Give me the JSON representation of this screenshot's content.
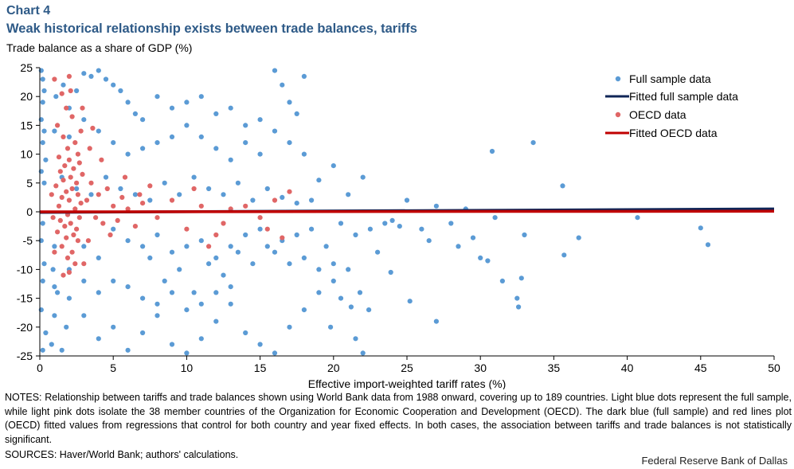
{
  "header": {
    "chart_label": "Chart 4",
    "title": "Weak historical relationship exists between trade balances, tariffs"
  },
  "footer": {
    "notes": "NOTES: Relationship between tariffs and trade balances shown using World Bank data from 1988 onward, covering up to 189 countries. Light blue dots represent the full sample, while light pink dots isolate the 38 member countries of the Organization for Economic Cooperation and Development (OECD). The dark blue (full sample) and red lines plot (OECD) fitted values from regressions that control for both country and year fixed effects. In both cases, the association between tariffs and trade balances is not statistically significant.",
    "sources": "SOURCES: Haver/World Bank; authors' calculations.",
    "credit": "Federal Reserve Bank of Dallas"
  },
  "colors": {
    "full_sample": "#5b9bd5",
    "oecd": "#e06666",
    "fitted_full": "#0f2557",
    "fitted_oecd": "#c00000"
  },
  "chart_data": {
    "type": "scatter",
    "title": "Weak historical relationship exists between trade balances, tariffs",
    "xlabel": "Effective import-weighted tariff rates (%)",
    "ylabel": "Trade balance as a share of GDP (%)",
    "xlim": [
      0,
      50
    ],
    "ylim": [
      -25,
      25
    ],
    "xticks": [
      0,
      5,
      10,
      15,
      20,
      25,
      30,
      35,
      40,
      45,
      50
    ],
    "yticks": [
      -25,
      -20,
      -15,
      -10,
      -5,
      0,
      5,
      10,
      15,
      20,
      25
    ],
    "grid": false,
    "legend_position": "top-right",
    "series": [
      {
        "name": "Full sample data",
        "kind": "points",
        "color": "#5b9bd5",
        "points": [
          [
            0.1,
            24.5
          ],
          [
            0.2,
            23.0
          ],
          [
            0.3,
            21.0
          ],
          [
            0.2,
            19.0
          ],
          [
            0.1,
            16.0
          ],
          [
            0.3,
            14.0
          ],
          [
            0.2,
            12.0
          ],
          [
            0.4,
            9.0
          ],
          [
            0.1,
            7.0
          ],
          [
            0.3,
            5.0
          ],
          [
            0.2,
            -2.0
          ],
          [
            0.1,
            -5.0
          ],
          [
            0.3,
            -9.0
          ],
          [
            0.2,
            -12.0
          ],
          [
            0.1,
            -17.0
          ],
          [
            0.4,
            -21.0
          ],
          [
            0.2,
            -24.0
          ],
          [
            0.8,
            -23.0
          ],
          [
            1.0,
            -18.0
          ],
          [
            1.2,
            -14.0
          ],
          [
            0.9,
            -10.0
          ],
          [
            1.5,
            -24.0
          ],
          [
            1.8,
            -20.0
          ],
          [
            1.1,
            20.0
          ],
          [
            1.6,
            22.0
          ],
          [
            2.0,
            18.0
          ],
          [
            2.5,
            21.0
          ],
          [
            3.0,
            24.0
          ],
          [
            3.5,
            23.5
          ],
          [
            4.0,
            24.5
          ],
          [
            4.5,
            23.0
          ],
          [
            5.0,
            22.0
          ],
          [
            5.5,
            21.0
          ],
          [
            6.0,
            19.0
          ],
          [
            6.5,
            17.0
          ],
          [
            7.0,
            16.0
          ],
          [
            8.0,
            20.0
          ],
          [
            9.0,
            18.0
          ],
          [
            10.0,
            19.0
          ],
          [
            11.0,
            20.0
          ],
          [
            12.0,
            17.0
          ],
          [
            13.0,
            18.0
          ],
          [
            14.0,
            15.0
          ],
          [
            15.0,
            16.0
          ],
          [
            16.0,
            24.5
          ],
          [
            16.5,
            22.0
          ],
          [
            17.0,
            19.0
          ],
          [
            17.5,
            17.0
          ],
          [
            18.0,
            23.5
          ],
          [
            3.0,
            -18.0
          ],
          [
            4.0,
            -22.0
          ],
          [
            5.0,
            -20.0
          ],
          [
            6.0,
            -24.0
          ],
          [
            7.0,
            -21.0
          ],
          [
            8.0,
            -18.0
          ],
          [
            9.0,
            -23.0
          ],
          [
            10.0,
            -24.5
          ],
          [
            11.0,
            -22.0
          ],
          [
            12.0,
            -19.0
          ],
          [
            13.0,
            -16.0
          ],
          [
            14.0,
            -21.0
          ],
          [
            15.0,
            -23.0
          ],
          [
            16.0,
            -24.5
          ],
          [
            17.0,
            -20.0
          ],
          [
            18.0,
            -17.0
          ],
          [
            19.0,
            -14.0
          ],
          [
            20.0,
            -12.0
          ],
          [
            21.0,
            -10.0
          ],
          [
            21.5,
            -22.0
          ],
          [
            22.0,
            -24.5
          ],
          [
            20.5,
            -15.0
          ],
          [
            7.5,
            -8.0
          ],
          [
            8.5,
            -12.0
          ],
          [
            9.5,
            -10.0
          ],
          [
            10.5,
            -14.0
          ],
          [
            11.5,
            -9.0
          ],
          [
            12.5,
            -11.0
          ],
          [
            13.5,
            -7.0
          ],
          [
            14.5,
            -9.0
          ],
          [
            15.5,
            -6.0
          ],
          [
            16.5,
            -5.0
          ],
          [
            17.5,
            -4.0
          ],
          [
            18.5,
            -3.0
          ],
          [
            19.5,
            -6.0
          ],
          [
            20.5,
            -2.0
          ],
          [
            21.5,
            -4.0
          ],
          [
            22.5,
            -3.0
          ],
          [
            23.5,
            -2.0
          ],
          [
            24.0,
            -1.5
          ],
          [
            24.5,
            -2.5
          ],
          [
            25.0,
            2.0
          ],
          [
            26.0,
            -3.0
          ],
          [
            27.0,
            1.0
          ],
          [
            28.0,
            -2.0
          ],
          [
            29.0,
            0.5
          ],
          [
            30.0,
            -8.0
          ],
          [
            30.5,
            -8.5
          ],
          [
            31.0,
            -1.0
          ],
          [
            31.5,
            -12.0
          ],
          [
            32.5,
            -15.0
          ],
          [
            32.6,
            -16.5
          ],
          [
            32.8,
            -11.5
          ],
          [
            33.0,
            -4.0
          ],
          [
            30.8,
            10.5
          ],
          [
            33.6,
            12.0
          ],
          [
            35.6,
            4.5
          ],
          [
            35.7,
            -7.5
          ],
          [
            36.7,
            -4.5
          ],
          [
            40.7,
            -1.0
          ],
          [
            45.0,
            -2.8
          ],
          [
            45.5,
            -5.7
          ],
          [
            23.9,
            -10.5
          ],
          [
            25.2,
            -15.5
          ],
          [
            27.0,
            -19.0
          ],
          [
            22.4,
            -17.0
          ],
          [
            21.2,
            -16.5
          ],
          [
            19.8,
            -20.0
          ],
          [
            21.8,
            -14.0
          ],
          [
            23.0,
            -7.0
          ],
          [
            28.5,
            -6.0
          ],
          [
            29.5,
            -4.5
          ],
          [
            26.5,
            -5.0
          ],
          [
            19.0,
            5.5
          ],
          [
            20.0,
            8.0
          ],
          [
            21.0,
            3.0
          ],
          [
            22.0,
            6.0
          ],
          [
            18.0,
            10.0
          ],
          [
            17.0,
            12.0
          ],
          [
            16.0,
            14.0
          ],
          [
            15.0,
            10.0
          ],
          [
            14.0,
            12.0
          ],
          [
            13.0,
            9.0
          ],
          [
            12.0,
            11.0
          ],
          [
            11.0,
            13.0
          ],
          [
            10.0,
            15.0
          ],
          [
            9.0,
            13.0
          ],
          [
            8.0,
            12.0
          ],
          [
            7.0,
            11.0
          ],
          [
            6.0,
            10.0
          ],
          [
            5.0,
            12.0
          ],
          [
            4.0,
            14.0
          ],
          [
            3.0,
            16.0
          ],
          [
            2.0,
            13.0
          ],
          [
            1.0,
            14.0
          ],
          [
            1.5,
            6.0
          ],
          [
            2.5,
            4.0
          ],
          [
            3.5,
            3.0
          ],
          [
            4.5,
            6.0
          ],
          [
            5.5,
            4.0
          ],
          [
            6.5,
            3.0
          ],
          [
            7.5,
            2.0
          ],
          [
            8.5,
            5.0
          ],
          [
            9.5,
            3.0
          ],
          [
            10.5,
            6.0
          ],
          [
            11.5,
            4.0
          ],
          [
            12.5,
            3.0
          ],
          [
            13.5,
            5.0
          ],
          [
            14.5,
            2.0
          ],
          [
            15.5,
            4.0
          ],
          [
            16.5,
            2.5
          ],
          [
            17.5,
            1.5
          ],
          [
            18.5,
            2.0
          ],
          [
            5.0,
            -3.0
          ],
          [
            6.0,
            -5.0
          ],
          [
            7.0,
            -6.0
          ],
          [
            8.0,
            -4.0
          ],
          [
            9.0,
            -7.0
          ],
          [
            10.0,
            -6.0
          ],
          [
            11.0,
            -5.0
          ],
          [
            12.0,
            -8.0
          ],
          [
            13.0,
            -6.0
          ],
          [
            14.0,
            -4.0
          ],
          [
            15.0,
            -3.0
          ],
          [
            16.0,
            -7.0
          ],
          [
            17.0,
            -9.0
          ],
          [
            18.0,
            -8.0
          ],
          [
            19.0,
            -10.0
          ],
          [
            20.0,
            -9.0
          ],
          [
            3.0,
            -6.0
          ],
          [
            4.0,
            -8.0
          ],
          [
            2.0,
            -10.0
          ],
          [
            1.0,
            -6.0
          ],
          [
            6.0,
            -13.0
          ],
          [
            7.0,
            -15.0
          ],
          [
            8.0,
            -16.0
          ],
          [
            9.0,
            -14.0
          ],
          [
            10.0,
            -17.0
          ],
          [
            11.0,
            -16.0
          ],
          [
            12.0,
            -14.0
          ],
          [
            13.0,
            -13.0
          ],
          [
            4.0,
            -14.0
          ],
          [
            5.0,
            -12.0
          ],
          [
            3.0,
            -12.0
          ],
          [
            2.0,
            -15.0
          ],
          [
            1.0,
            -13.0
          ]
        ]
      },
      {
        "name": "Fitted full sample data",
        "kind": "line",
        "color": "#0f2557",
        "points": [
          [
            0,
            -0.1
          ],
          [
            50,
            0.5
          ]
        ]
      },
      {
        "name": "OECD data",
        "kind": "points",
        "color": "#e06666",
        "points": [
          [
            1.0,
            23.0
          ],
          [
            2.0,
            23.5
          ],
          [
            2.1,
            21.0
          ],
          [
            1.5,
            20.5
          ],
          [
            1.8,
            18.0
          ],
          [
            2.2,
            16.5
          ],
          [
            1.2,
            15.0
          ],
          [
            2.8,
            14.0
          ],
          [
            1.6,
            13.0
          ],
          [
            2.4,
            12.0
          ],
          [
            1.9,
            11.0
          ],
          [
            2.6,
            10.0
          ],
          [
            1.3,
            9.5
          ],
          [
            2.0,
            9.0
          ],
          [
            2.7,
            8.5
          ],
          [
            1.7,
            8.0
          ],
          [
            2.3,
            7.5
          ],
          [
            1.4,
            7.0
          ],
          [
            2.9,
            6.5
          ],
          [
            2.1,
            6.0
          ],
          [
            1.6,
            5.5
          ],
          [
            2.5,
            5.0
          ],
          [
            1.1,
            4.5
          ],
          [
            2.2,
            4.0
          ],
          [
            1.8,
            3.5
          ],
          [
            2.6,
            3.0
          ],
          [
            1.5,
            2.5
          ],
          [
            2.0,
            2.0
          ],
          [
            2.8,
            1.5
          ],
          [
            1.3,
            1.0
          ],
          [
            2.4,
            0.5
          ],
          [
            1.9,
            -0.5
          ],
          [
            2.7,
            -1.0
          ],
          [
            1.4,
            -1.5
          ],
          [
            2.1,
            -2.0
          ],
          [
            1.7,
            -2.5
          ],
          [
            2.5,
            -3.0
          ],
          [
            1.2,
            -3.5
          ],
          [
            2.3,
            -4.0
          ],
          [
            1.8,
            -4.5
          ],
          [
            2.6,
            -5.0
          ],
          [
            1.5,
            -6.0
          ],
          [
            2.2,
            -7.0
          ],
          [
            1.9,
            -8.0
          ],
          [
            2.4,
            -9.0
          ],
          [
            2.0,
            -10.5
          ],
          [
            1.6,
            -11.0
          ],
          [
            3.0,
            -9.0
          ],
          [
            3.2,
            2.0
          ],
          [
            3.5,
            5.0
          ],
          [
            3.8,
            -1.0
          ],
          [
            4.0,
            3.0
          ],
          [
            4.3,
            -2.0
          ],
          [
            4.6,
            4.0
          ],
          [
            5.0,
            1.0
          ],
          [
            5.3,
            -1.5
          ],
          [
            5.6,
            2.5
          ],
          [
            6.0,
            0.5
          ],
          [
            6.5,
            -2.5
          ],
          [
            7.0,
            1.5
          ],
          [
            7.5,
            4.5
          ],
          [
            8.0,
            -1.0
          ],
          [
            9.0,
            2.0
          ],
          [
            10.0,
            -3.0
          ],
          [
            11.0,
            1.0
          ],
          [
            12.0,
            -4.0
          ],
          [
            12.5,
            -2.0
          ],
          [
            13.0,
            0.5
          ],
          [
            14.0,
            1.0
          ],
          [
            15.0,
            -1.0
          ],
          [
            15.5,
            -3.0
          ],
          [
            16.0,
            2.0
          ],
          [
            16.5,
            -4.5
          ],
          [
            17.0,
            3.5
          ],
          [
            3.4,
            11.0
          ],
          [
            4.2,
            9.0
          ],
          [
            2.9,
            18.0
          ],
          [
            3.6,
            14.5
          ],
          [
            1.0,
            -7.0
          ],
          [
            0.8,
            3.0
          ],
          [
            0.9,
            -1.0
          ],
          [
            3.3,
            -5.0
          ],
          [
            4.8,
            -4.0
          ],
          [
            5.8,
            6.0
          ],
          [
            6.8,
            3.0
          ],
          [
            10.5,
            4.0
          ],
          [
            11.5,
            -6.0
          ]
        ]
      },
      {
        "name": "Fitted OECD data",
        "kind": "line",
        "color": "#c00000",
        "points": [
          [
            0,
            0.0
          ],
          [
            50,
            0.1
          ]
        ]
      }
    ]
  }
}
